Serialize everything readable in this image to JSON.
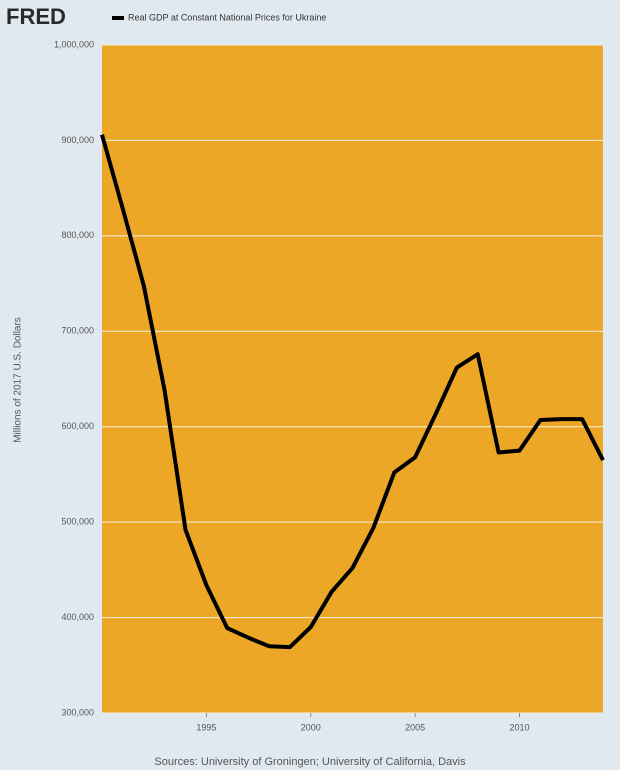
{
  "logo": "FRED",
  "chart_data": {
    "type": "line",
    "y_label": "Millions of 2017 U.S. Dollars",
    "source": "Sources: University of Groningen; University of California, Davis",
    "x": [
      1990,
      1991,
      1992,
      1993,
      1994,
      1995,
      1996,
      1997,
      1998,
      1999,
      2000,
      2001,
      2002,
      2003,
      2004,
      2005,
      2006,
      2007,
      2008,
      2009,
      2010,
      2011,
      2012,
      2013,
      2014
    ],
    "series": [
      {
        "name": "Real GDP at Constant National Prices for Ukraine",
        "color": "#000000",
        "values": [
          906000,
          828000,
          748000,
          638000,
          492000,
          434000,
          389000,
          379000,
          370000,
          369000,
          390000,
          427000,
          452000,
          494000,
          552000,
          568000,
          614000,
          662000,
          676000,
          573000,
          575000,
          607000,
          608000,
          608000,
          565000
        ]
      }
    ],
    "xlim": [
      1990,
      2014
    ],
    "xticks": [
      1995,
      2000,
      2005,
      2010
    ],
    "ylim": [
      300000,
      1000000
    ],
    "yticks": [
      {
        "value": 300000,
        "label": "300,000"
      },
      {
        "value": 400000,
        "label": "400,000"
      },
      {
        "value": 500000,
        "label": "500,000"
      },
      {
        "value": 600000,
        "label": "600,000"
      },
      {
        "value": 700000,
        "label": "700,000"
      },
      {
        "value": 800000,
        "label": "800,000"
      },
      {
        "value": 900000,
        "label": "900,000"
      },
      {
        "value": 1000000,
        "label": "1,000,000"
      }
    ],
    "grid": true,
    "plot_background": "#eba725"
  }
}
